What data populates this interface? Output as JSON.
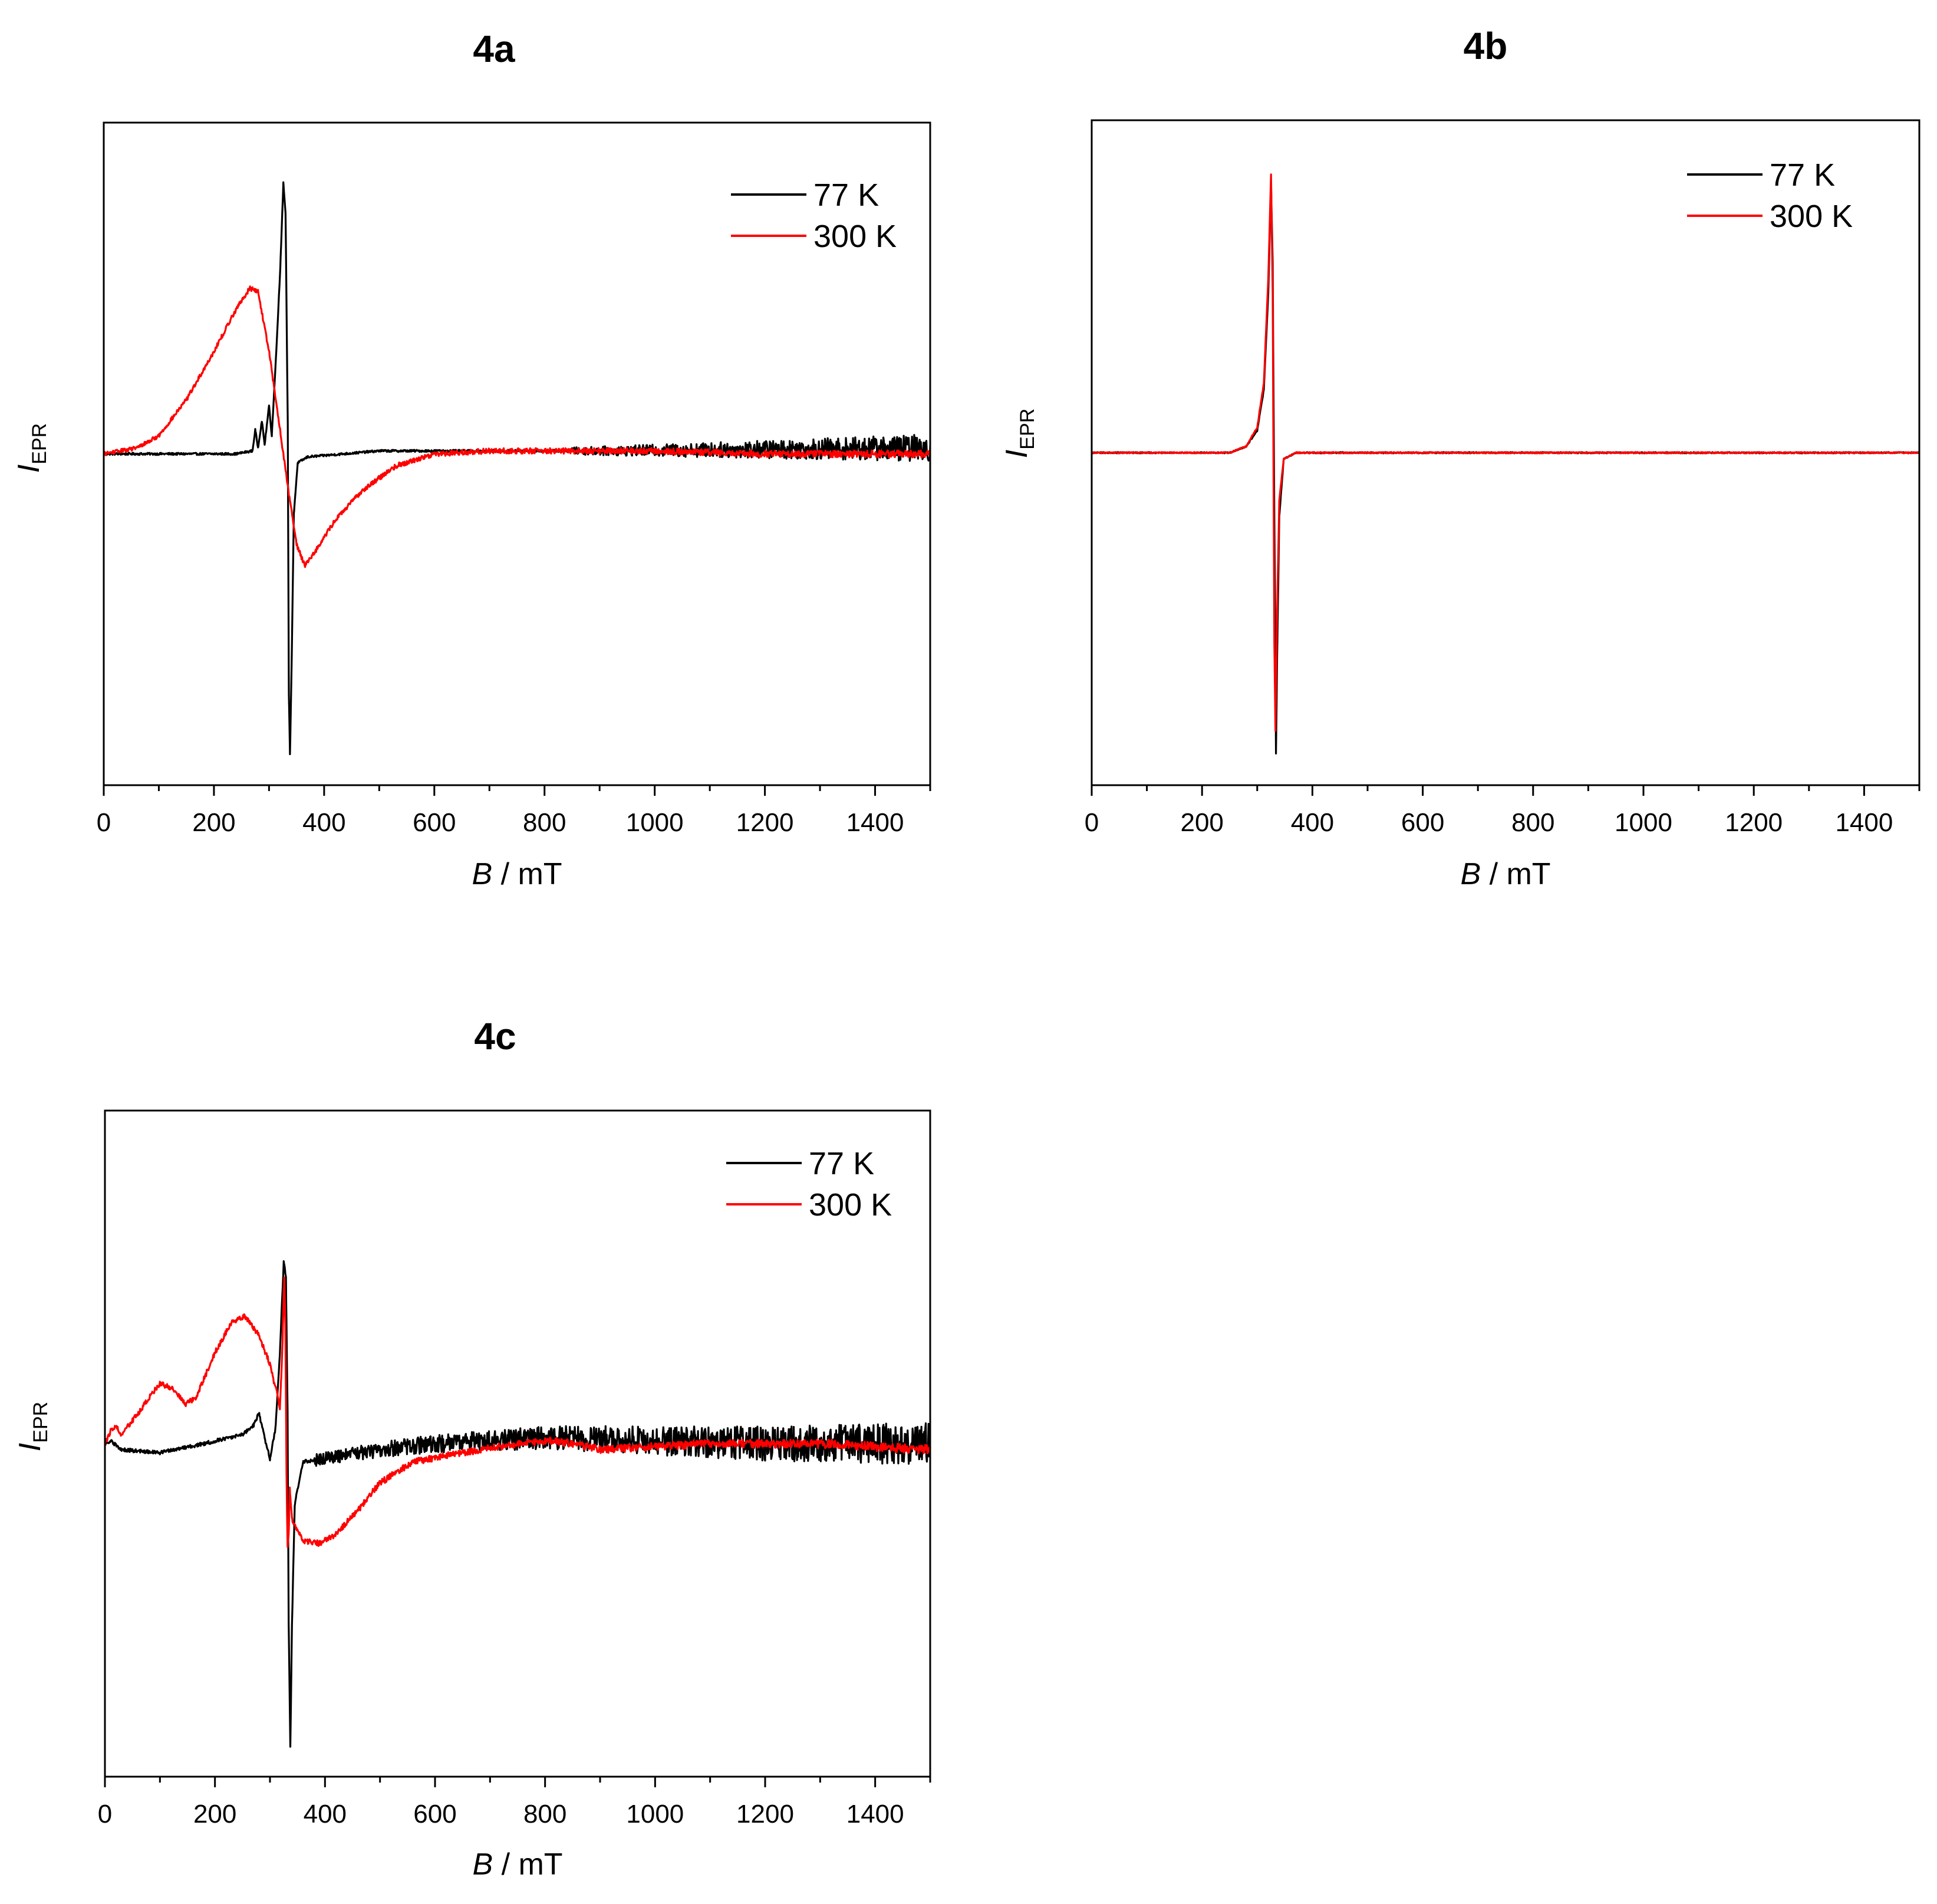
{
  "chart_data": [
    {
      "id": "4a",
      "type": "line",
      "title": "4a",
      "xlabel": "B",
      "xlabel_unit": " / mT",
      "ylabel": "I",
      "ylabel_sub": "EPR",
      "xlim": [
        0,
        1500
      ],
      "ylim": [
        -1.1,
        1.1
      ],
      "x_ticks": [
        "0",
        "200",
        "400",
        "600",
        "800",
        "1000",
        "1200",
        "1400"
      ],
      "legend_position": "top-right",
      "series": [
        {
          "name": "77 K",
          "color": "#000000",
          "noise": 0.012,
          "noise_start": 850,
          "noise_max": 0.045,
          "points": [
            [
              0,
              0
            ],
            [
              240,
              0
            ],
            [
              270,
              0.01
            ],
            [
              275,
              0.08
            ],
            [
              280,
              0.02
            ],
            [
              287,
              0.11
            ],
            [
              292,
              0.03
            ],
            [
              300,
              0.16
            ],
            [
              305,
              0.06
            ],
            [
              312,
              0.3
            ],
            [
              320,
              0.6
            ],
            [
              326,
              0.9
            ],
            [
              330,
              0.8
            ],
            [
              334,
              0.1
            ],
            [
              336,
              -0.8
            ],
            [
              338,
              -1.0
            ],
            [
              341,
              -0.7
            ],
            [
              345,
              -0.2
            ],
            [
              352,
              -0.03
            ],
            [
              370,
              -0.01
            ],
            [
              500,
              0.01
            ],
            [
              900,
              0.01
            ],
            [
              1500,
              0.02
            ]
          ]
        },
        {
          "name": "300 K",
          "color": "#ff0000",
          "noise": 0.006,
          "noise_start": 0,
          "noise_max": 0.012,
          "points": [
            [
              0,
              0
            ],
            [
              60,
              0.02
            ],
            [
              100,
              0.06
            ],
            [
              150,
              0.18
            ],
            [
              200,
              0.34
            ],
            [
              240,
              0.48
            ],
            [
              265,
              0.55
            ],
            [
              280,
              0.54
            ],
            [
              300,
              0.34
            ],
            [
              320,
              0.08
            ],
            [
              335,
              -0.12
            ],
            [
              350,
              -0.3
            ],
            [
              365,
              -0.37
            ],
            [
              385,
              -0.32
            ],
            [
              420,
              -0.22
            ],
            [
              470,
              -0.12
            ],
            [
              530,
              -0.04
            ],
            [
              600,
              0
            ],
            [
              700,
              0.01
            ],
            [
              800,
              0.01
            ],
            [
              1000,
              0.01
            ],
            [
              1200,
              0
            ],
            [
              1500,
              0
            ]
          ]
        }
      ]
    },
    {
      "id": "4b",
      "type": "line",
      "title": "4b",
      "xlabel": "B",
      "xlabel_unit": " / mT",
      "ylabel": "I",
      "ylabel_sub": "EPR",
      "xlim": [
        0,
        1500
      ],
      "ylim": [
        -1.05,
        1.05
      ],
      "x_ticks": [
        "0",
        "200",
        "400",
        "600",
        "800",
        "1000",
        "1200",
        "1400"
      ],
      "legend_position": "top-right",
      "series": [
        {
          "name": "77 K",
          "color": "#000000",
          "noise": 0.002,
          "noise_start": 0,
          "noise_max": 0.002,
          "points": [
            [
              0,
              0
            ],
            [
              250,
              0
            ],
            [
              280,
              0.02
            ],
            [
              300,
              0.07
            ],
            [
              312,
              0.2
            ],
            [
              320,
              0.5
            ],
            [
              325,
              0.85
            ],
            [
              328,
              0.6
            ],
            [
              331,
              -0.2
            ],
            [
              334,
              -0.95
            ],
            [
              336,
              -0.65
            ],
            [
              340,
              -0.2
            ],
            [
              348,
              -0.02
            ],
            [
              370,
              0
            ],
            [
              1500,
              0
            ]
          ]
        },
        {
          "name": "300 K",
          "color": "#ff0000",
          "noise": 0.002,
          "noise_start": 0,
          "noise_max": 0.002,
          "points": [
            [
              0,
              0
            ],
            [
              250,
              0
            ],
            [
              280,
              0.02
            ],
            [
              300,
              0.08
            ],
            [
              312,
              0.22
            ],
            [
              320,
              0.55
            ],
            [
              325,
              0.88
            ],
            [
              328,
              0.5
            ],
            [
              331,
              -0.6
            ],
            [
              333,
              -0.88
            ],
            [
              336,
              -0.5
            ],
            [
              340,
              -0.15
            ],
            [
              348,
              -0.02
            ],
            [
              370,
              0
            ],
            [
              1500,
              0
            ]
          ]
        }
      ]
    },
    {
      "id": "4c",
      "type": "line",
      "title": "4c",
      "xlabel": "B",
      "xlabel_unit": " / mT",
      "ylabel": "I",
      "ylabel_sub": "EPR",
      "xlim": [
        0,
        1500
      ],
      "ylim": [
        -1.1,
        1.1
      ],
      "x_ticks": [
        "0",
        "200",
        "400",
        "600",
        "800",
        "1000",
        "1200",
        "1400"
      ],
      "legend_position": "top-right",
      "series": [
        {
          "name": "77 K",
          "color": "#000000",
          "noise": 0.02,
          "noise_start": 380,
          "noise_max": 0.07,
          "points": [
            [
              0,
              0
            ],
            [
              10,
              0.01
            ],
            [
              30,
              -0.02
            ],
            [
              100,
              -0.03
            ],
            [
              180,
              0
            ],
            [
              250,
              0.03
            ],
            [
              270,
              0.06
            ],
            [
              280,
              0.1
            ],
            [
              290,
              0.02
            ],
            [
              300,
              -0.05
            ],
            [
              310,
              0.05
            ],
            [
              318,
              0.3
            ],
            [
              325,
              0.6
            ],
            [
              329,
              0.55
            ],
            [
              332,
              0.1
            ],
            [
              334,
              -0.6
            ],
            [
              337,
              -1.0
            ],
            [
              340,
              -0.6
            ],
            [
              345,
              -0.2
            ],
            [
              360,
              -0.06
            ],
            [
              400,
              -0.05
            ],
            [
              500,
              -0.02
            ],
            [
              600,
              0
            ],
            [
              800,
              0.02
            ],
            [
              1000,
              0.01
            ],
            [
              1200,
              0
            ],
            [
              1500,
              0
            ]
          ]
        },
        {
          "name": "300 K",
          "color": "#ff0000",
          "noise": 0.008,
          "noise_start": 0,
          "noise_max": 0.015,
          "points": [
            [
              0,
              0
            ],
            [
              10,
              0.04
            ],
            [
              20,
              0.06
            ],
            [
              30,
              0.03
            ],
            [
              60,
              0.1
            ],
            [
              100,
              0.2
            ],
            [
              125,
              0.18
            ],
            [
              145,
              0.13
            ],
            [
              165,
              0.15
            ],
            [
              200,
              0.3
            ],
            [
              230,
              0.4
            ],
            [
              255,
              0.42
            ],
            [
              280,
              0.36
            ],
            [
              300,
              0.26
            ],
            [
              312,
              0.17
            ],
            [
              318,
              0.12
            ],
            [
              320,
              0.2
            ],
            [
              323,
              0.35
            ],
            [
              326,
              0.55
            ],
            [
              328,
              0.4
            ],
            [
              330,
              -0.1
            ],
            [
              332,
              -0.35
            ],
            [
              334,
              -0.3
            ],
            [
              336,
              -0.15
            ],
            [
              340,
              -0.25
            ],
            [
              360,
              -0.32
            ],
            [
              390,
              -0.33
            ],
            [
              420,
              -0.3
            ],
            [
              460,
              -0.22
            ],
            [
              500,
              -0.13
            ],
            [
              560,
              -0.06
            ],
            [
              650,
              -0.03
            ],
            [
              750,
              0
            ],
            [
              810,
              0.01
            ],
            [
              850,
              0
            ],
            [
              900,
              -0.02
            ],
            [
              1000,
              -0.01
            ],
            [
              1100,
              0
            ],
            [
              1200,
              0
            ],
            [
              1300,
              0
            ],
            [
              1500,
              -0.02
            ]
          ]
        }
      ]
    }
  ]
}
